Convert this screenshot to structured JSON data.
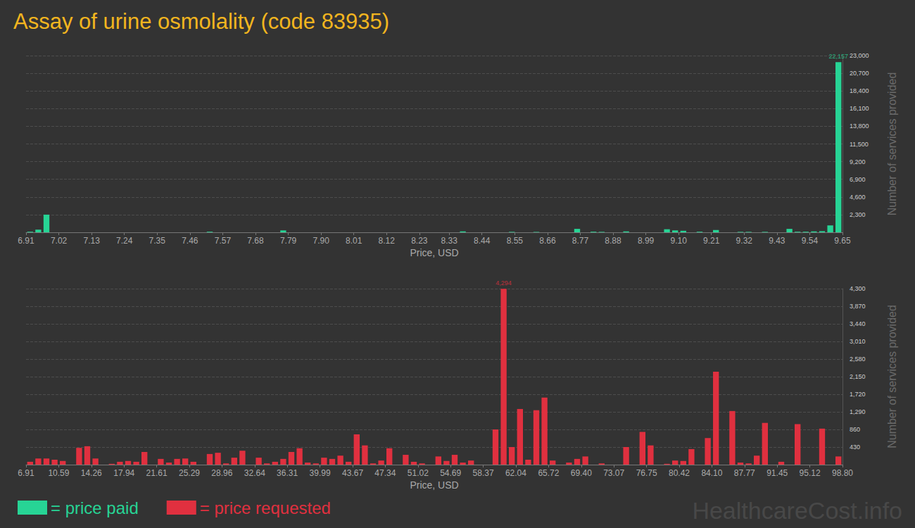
{
  "title": "Assay of urine osmolality (code 83935)",
  "watermark": "HealthcareCost.info",
  "chart_data": [
    {
      "type": "histogram",
      "xlabel": "Price, USD",
      "ylabel": "Number of services provided",
      "bins": [
        6.91,
        6.9374,
        6.9648,
        6.9922,
        7.0196,
        7.047,
        7.0744,
        7.1018,
        7.1292,
        7.1566,
        7.184,
        7.2114,
        7.2388,
        7.2662,
        7.2936,
        7.321,
        7.3484,
        7.3758,
        7.4032,
        7.4306,
        7.458,
        7.4854,
        7.5128,
        7.5402,
        7.5676,
        7.595,
        7.6224,
        7.6498,
        7.6772,
        7.7046,
        7.732,
        7.7594,
        7.7868,
        7.8142,
        7.8416,
        7.869,
        7.8964,
        7.9238,
        7.9512,
        7.9786,
        8.006,
        8.0334,
        8.0608,
        8.0882,
        8.1156,
        8.143,
        8.1704,
        8.1978,
        8.2252,
        8.2526,
        8.28,
        8.3074,
        8.3348,
        8.3622,
        8.3896,
        8.417,
        8.4444,
        8.4718,
        8.4992,
        8.5266,
        8.554,
        8.5814,
        8.6088,
        8.6362,
        8.6636,
        8.691,
        8.7184,
        8.7458,
        8.7732,
        8.8006,
        8.828,
        8.8554,
        8.8828,
        8.9102,
        8.9376,
        8.965,
        8.9924,
        9.0198,
        9.0472,
        9.0746,
        9.102,
        9.1294,
        9.1568,
        9.1842,
        9.2116,
        9.239,
        9.2664,
        9.2938,
        9.3212,
        9.3486,
        9.376,
        9.4034,
        9.4308,
        9.4582,
        9.4856,
        9.513,
        9.5404,
        9.5678,
        9.5952,
        9.6226,
        9.65
      ],
      "series": [
        {
          "name": "= price paid",
          "color": "#27d495",
          "values": [
            80,
            350,
            2300,
            0,
            0,
            0,
            0,
            0,
            0,
            0,
            0,
            0,
            0,
            0,
            0,
            0,
            0,
            0,
            0,
            0,
            0,
            0,
            80,
            0,
            0,
            0,
            0,
            0,
            0,
            0,
            0,
            250,
            0,
            0,
            0,
            0,
            0,
            0,
            0,
            0,
            0,
            0,
            0,
            0,
            0,
            0,
            0,
            0,
            0,
            0,
            0,
            0,
            0,
            120,
            0,
            0,
            0,
            0,
            0,
            60,
            0,
            0,
            50,
            0,
            0,
            0,
            0,
            450,
            0,
            80,
            60,
            0,
            0,
            120,
            0,
            0,
            0,
            0,
            400,
            250,
            200,
            0,
            80,
            0,
            300,
            0,
            0,
            60,
            60,
            0,
            60,
            0,
            0,
            450,
            80,
            80,
            120,
            150,
            900,
            22157
          ]
        }
      ],
      "annotations": [
        {
          "x": 9.6363,
          "y": 22157,
          "text": "22,157"
        }
      ],
      "xlim": [
        6.91,
        9.65
      ],
      "xticks": [
        6.91,
        7.02,
        7.13,
        7.24,
        7.35,
        7.46,
        7.57,
        7.68,
        7.79,
        {
          "value": 7.9,
          "label": "7.90"
        },
        8.01,
        8.12,
        8.23,
        8.33,
        8.44,
        8.55,
        8.66,
        8.77,
        8.88,
        8.99,
        {
          "value": 9.1,
          "label": "9.10"
        },
        9.21,
        9.32,
        9.43,
        9.54,
        9.65
      ],
      "ylim": [
        0,
        23000
      ],
      "yticks": [
        {
          "value": 2300,
          "label": "2,300"
        },
        {
          "value": 4600,
          "label": "4,600"
        },
        {
          "value": 6900,
          "label": "6,900"
        },
        {
          "value": 9200,
          "label": "9,200"
        },
        {
          "value": 11500,
          "label": "11,500"
        },
        {
          "value": 13800,
          "label": "13,800"
        },
        {
          "value": 16100,
          "label": "16,100"
        },
        {
          "value": 18400,
          "label": "18,400"
        },
        {
          "value": 20700,
          "label": "20,700"
        },
        {
          "value": 23000,
          "label": "23,000"
        }
      ],
      "grid": true,
      "legend": "bottom"
    },
    {
      "type": "histogram",
      "xlabel": "Price, USD",
      "ylabel": "Number of services provided",
      "bins": [
        6.91,
        7.8289,
        8.7478,
        9.6667,
        10.5856,
        11.5045,
        12.4234,
        13.3423,
        14.2612,
        15.1801,
        16.099,
        17.0179,
        17.9368,
        18.8557,
        19.7746,
        20.6935,
        21.6124,
        22.5313,
        23.4502,
        24.3691,
        25.288,
        26.2069,
        27.1258,
        28.0447,
        28.9636,
        29.8825,
        30.8014,
        31.7203,
        32.6392,
        33.5581,
        34.477,
        35.3959,
        36.3148,
        37.2337,
        38.1526,
        39.0715,
        39.9904,
        40.9093,
        41.8282,
        42.7471,
        43.666,
        44.5849,
        45.5038,
        46.4227,
        47.3416,
        48.2605,
        49.1794,
        50.0983,
        51.0172,
        51.9361,
        52.855,
        53.7739,
        54.6928,
        55.6117,
        56.5306,
        57.4495,
        58.3684,
        59.2873,
        60.2062,
        61.1251,
        62.044,
        62.9629,
        63.8818,
        64.8007,
        65.7196,
        66.6385,
        67.5574,
        68.4763,
        69.3952,
        70.3141,
        71.233,
        72.1519,
        73.0708,
        73.9897,
        74.9086,
        75.8275,
        76.7464,
        77.6653,
        78.5842,
        79.5031,
        80.422,
        81.3409,
        82.2598,
        83.1787,
        84.0976,
        85.0165,
        85.9354,
        86.8543,
        87.7732,
        88.6921,
        89.611,
        90.5299,
        91.4488,
        92.3677,
        93.2866,
        94.2055,
        95.1244,
        96.0433,
        96.9622,
        97.8811,
        98.8
      ],
      "series": [
        {
          "name": "= price requested",
          "color": "#e0303f",
          "values": [
            70,
            150,
            150,
            120,
            90,
            0,
            410,
            450,
            150,
            0,
            20,
            70,
            90,
            70,
            310,
            0,
            140,
            50,
            140,
            150,
            70,
            0,
            260,
            290,
            30,
            170,
            340,
            0,
            170,
            30,
            70,
            140,
            310,
            400,
            50,
            30,
            170,
            140,
            220,
            70,
            740,
            470,
            30,
            100,
            400,
            0,
            240,
            70,
            30,
            0,
            200,
            90,
            240,
            50,
            100,
            0,
            0,
            860,
            4294,
            430,
            1360,
            120,
            1330,
            1640,
            100,
            0,
            50,
            140,
            200,
            0,
            30,
            0,
            0,
            430,
            0,
            800,
            470,
            0,
            20,
            100,
            90,
            380,
            0,
            650,
            2270,
            0,
            1310,
            50,
            30,
            220,
            1020,
            0,
            70,
            0,
            990,
            0,
            0,
            880,
            0,
            200
          ]
        }
      ],
      "annotations": [
        {
          "x": 60.6657,
          "y": 4294,
          "text": "4,294"
        }
      ],
      "xlim": [
        6.91,
        98.8
      ],
      "xticks": [
        6.91,
        10.59,
        14.26,
        17.94,
        21.61,
        25.29,
        28.96,
        32.64,
        36.31,
        39.99,
        43.67,
        47.34,
        51.02,
        54.69,
        58.37,
        62.04,
        65.72,
        {
          "value": 69.4,
          "label": "69.40"
        },
        73.07,
        76.75,
        80.42,
        {
          "value": 84.1,
          "label": "84.10"
        },
        87.77,
        91.45,
        95.12,
        {
          "value": 98.8,
          "label": "98.80"
        }
      ],
      "ylim": [
        0,
        4300
      ],
      "yticks": [
        430,
        860,
        {
          "value": 1290,
          "label": "1,290"
        },
        {
          "value": 1720,
          "label": "1,720"
        },
        {
          "value": 2150,
          "label": "2,150"
        },
        {
          "value": 2580,
          "label": "2,580"
        },
        {
          "value": 3010,
          "label": "3,010"
        },
        {
          "value": 3440,
          "label": "3,440"
        },
        {
          "value": 3870,
          "label": "3,870"
        },
        {
          "value": 4300,
          "label": "4,300"
        }
      ],
      "grid": true,
      "legend": "bottom"
    }
  ]
}
